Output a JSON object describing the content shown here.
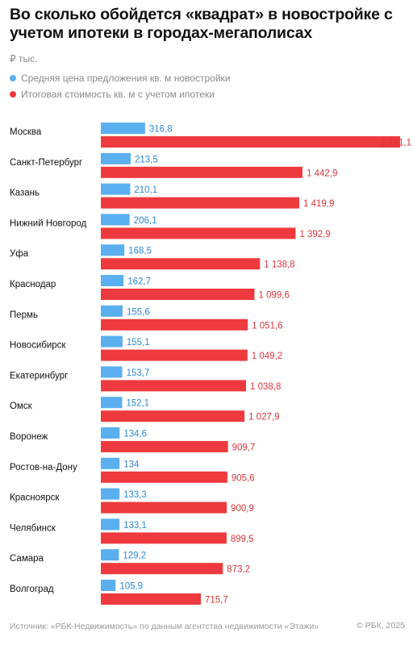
{
  "header": {
    "title": "Во сколько обойдется «квадрат» в новостройке с учетом ипотеки в городах-мегаполисах",
    "unit": "₽ тыс."
  },
  "colors": {
    "blue": "#5aafef",
    "red": "#ee3a3e",
    "blue_text": "#2d8ad4",
    "red_text": "#d9363a"
  },
  "chart_data": {
    "type": "bar",
    "orientation": "horizontal",
    "categories": [
      "Москва",
      "Санкт-Петербург",
      "Казань",
      "Нижний Новгород",
      "Уфа",
      "Краснодар",
      "Пермь",
      "Новосибирск",
      "Екатеринбург",
      "Омск",
      "Воронеж",
      "Ростов-на-Дону",
      "Красноярск",
      "Челябинск",
      "Самара",
      "Волгоград"
    ],
    "series": [
      {
        "name": "Средняя цена предложения кв. м новостройки",
        "color": "#5aafef",
        "values": [
          316.8,
          213.5,
          210.1,
          206.1,
          168.5,
          162.7,
          155.6,
          155.1,
          153.7,
          152.1,
          134.6,
          134,
          133.3,
          133.1,
          129.2,
          105.9
        ],
        "labels": [
          "316,8",
          "213,5",
          "210,1",
          "206,1",
          "168,5",
          "162,7",
          "155,6",
          "155,1",
          "153,7",
          "152,1",
          "134,6",
          "134",
          "133,3",
          "133,1",
          "129,2",
          "105,9"
        ]
      },
      {
        "name": "Итоговая стоимость кв. м с учетом ипотеки",
        "color": "#ee3a3e",
        "values": [
          2141.1,
          1442.9,
          1419.9,
          1392.9,
          1138.8,
          1099.6,
          1051.6,
          1049.2,
          1038.8,
          1027.9,
          909.7,
          905.6,
          900.9,
          899.5,
          873.2,
          715.7
        ],
        "labels": [
          "2 141,1",
          "1 442,9",
          "1 419,9",
          "1 392,9",
          "1 138,8",
          "1 099,6",
          "1 051,6",
          "1 049,2",
          "1 038,8",
          "1 027,9",
          "909,7",
          "905,6",
          "900,9",
          "899,5",
          "873,2",
          "715,7"
        ]
      }
    ]
  },
  "footer": {
    "source": "Источник: «РБК-Недвижимость» по данным агентства недвижимости «Этажи»",
    "copyright": "© РБК, 2025"
  }
}
